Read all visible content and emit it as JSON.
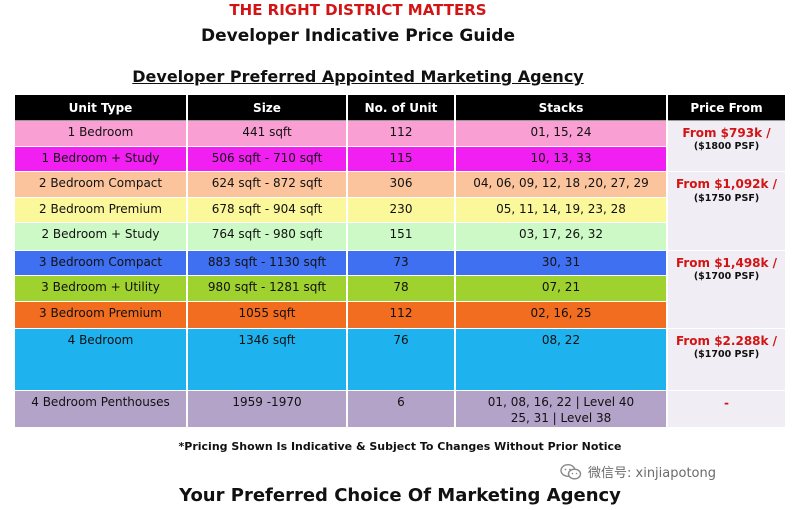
{
  "header": {
    "kicker": "THE RIGHT DISTRICT MATTERS",
    "title": "Developer Indicative Price Guide",
    "subtitle": "Developer Preferred Appointed Marketing Agency"
  },
  "table": {
    "columns": [
      "Unit Type",
      "Size",
      "No. of Unit",
      "Stacks",
      "Price From"
    ],
    "rows": [
      {
        "type": "1 Bedroom",
        "size": "441 sqft",
        "units": "112",
        "stacks": "01, 15, 24",
        "color": "#f99fd3"
      },
      {
        "type": "1 Bedroom + Study",
        "size": "506 sqft - 710 sqft",
        "units": "115",
        "stacks": "10, 13, 33",
        "color": "#f21ff2"
      },
      {
        "type": "2 Bedroom Compact",
        "size": "624 sqft - 872 sqft",
        "units": "306",
        "stacks": "04, 06, 09, 12, 18 ,20, 27, 29",
        "color": "#fbc49d"
      },
      {
        "type": "2 Bedroom Premium",
        "size": "678 sqft - 904 sqft",
        "units": "230",
        "stacks": "05, 11, 14, 19, 23, 28",
        "color": "#fbf79b"
      },
      {
        "type": "2 Bedroom + Study",
        "size": "764 sqft - 980 sqft",
        "units": "151",
        "stacks": "03, 17, 26, 32",
        "color": "#cdf9c7"
      },
      {
        "type": "3 Bedroom Compact",
        "size": "883 sqft - 1130 sqft",
        "units": "73",
        "stacks": "30, 31",
        "color": "#3f70f2"
      },
      {
        "type": "3 Bedroom + Utility",
        "size": "980 sqft - 1281 sqft",
        "units": "78",
        "stacks": "07, 21",
        "color": "#9fd12f"
      },
      {
        "type": "3 Bedroom Premium",
        "size": "1055 sqft",
        "units": "112",
        "stacks": "02, 16, 25",
        "color": "#f26d1f"
      },
      {
        "type": "4 Bedroom",
        "size": "1346 sqft",
        "units": "76",
        "stacks": "08, 22",
        "color": "#1eb3ee"
      },
      {
        "type": "4 Bedroom Penthouses",
        "size": "1959 -1970",
        "units": "6",
        "stacks": "01, 08, 16, 22 |  Level 40",
        "stacks2": "25, 31 | Level 38",
        "color": "#b4a3c9"
      }
    ],
    "prices": [
      {
        "price": "From $793k /",
        "psf": "($1800 PSF)"
      },
      {
        "price": "From $1,092k /",
        "psf": "($1750 PSF)"
      },
      {
        "price": "From $1,498k /",
        "psf": "($1700 PSF)"
      },
      {
        "price": "From $2.288k /",
        "psf": "($1700 PSF)"
      },
      {
        "price": "-",
        "psf": ""
      }
    ]
  },
  "note": "*Pricing Shown Is Indicative & Subject To Changes Without Prior Notice",
  "footer": "Your Preferred Choice Of Marketing Agency",
  "watermark": {
    "icon": "wechat-icon",
    "text": "微信号: xinjiapotong"
  }
}
